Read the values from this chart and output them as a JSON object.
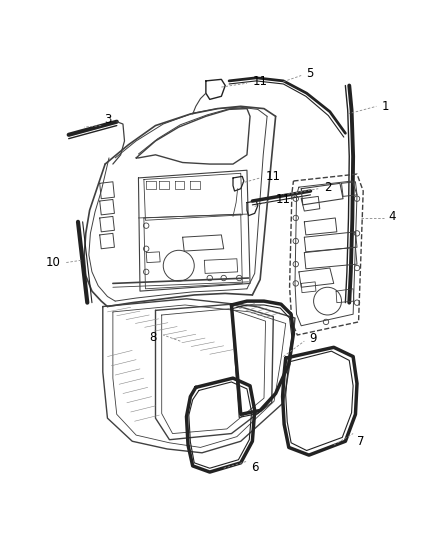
{
  "bg_color": "#ffffff",
  "line_color": "#404040",
  "dark_color": "#222222",
  "gray_color": "#888888",
  "label_color": "#000000",
  "font_size": 8.5
}
